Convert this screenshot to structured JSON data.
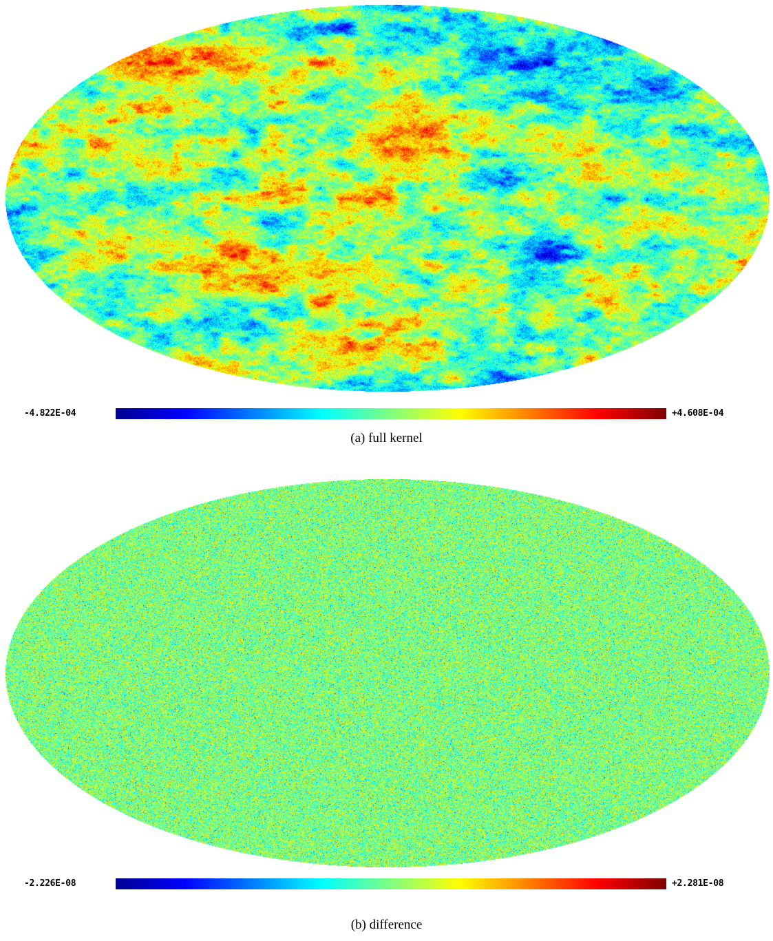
{
  "panels": [
    {
      "colorbar_min": "-4.822E-04",
      "colorbar_max": "+4.608E-04",
      "caption": "(a)  full kernel"
    },
    {
      "colorbar_min": "-2.226E-08",
      "colorbar_max": "+2.281E-08",
      "caption": "(b)  difference"
    }
  ],
  "colormap": [
    "#00008f",
    "#0000ff",
    "#007fff",
    "#00ffff",
    "#7fff7f",
    "#ffff00",
    "#ff7f00",
    "#ff0000",
    "#7f0000"
  ]
}
